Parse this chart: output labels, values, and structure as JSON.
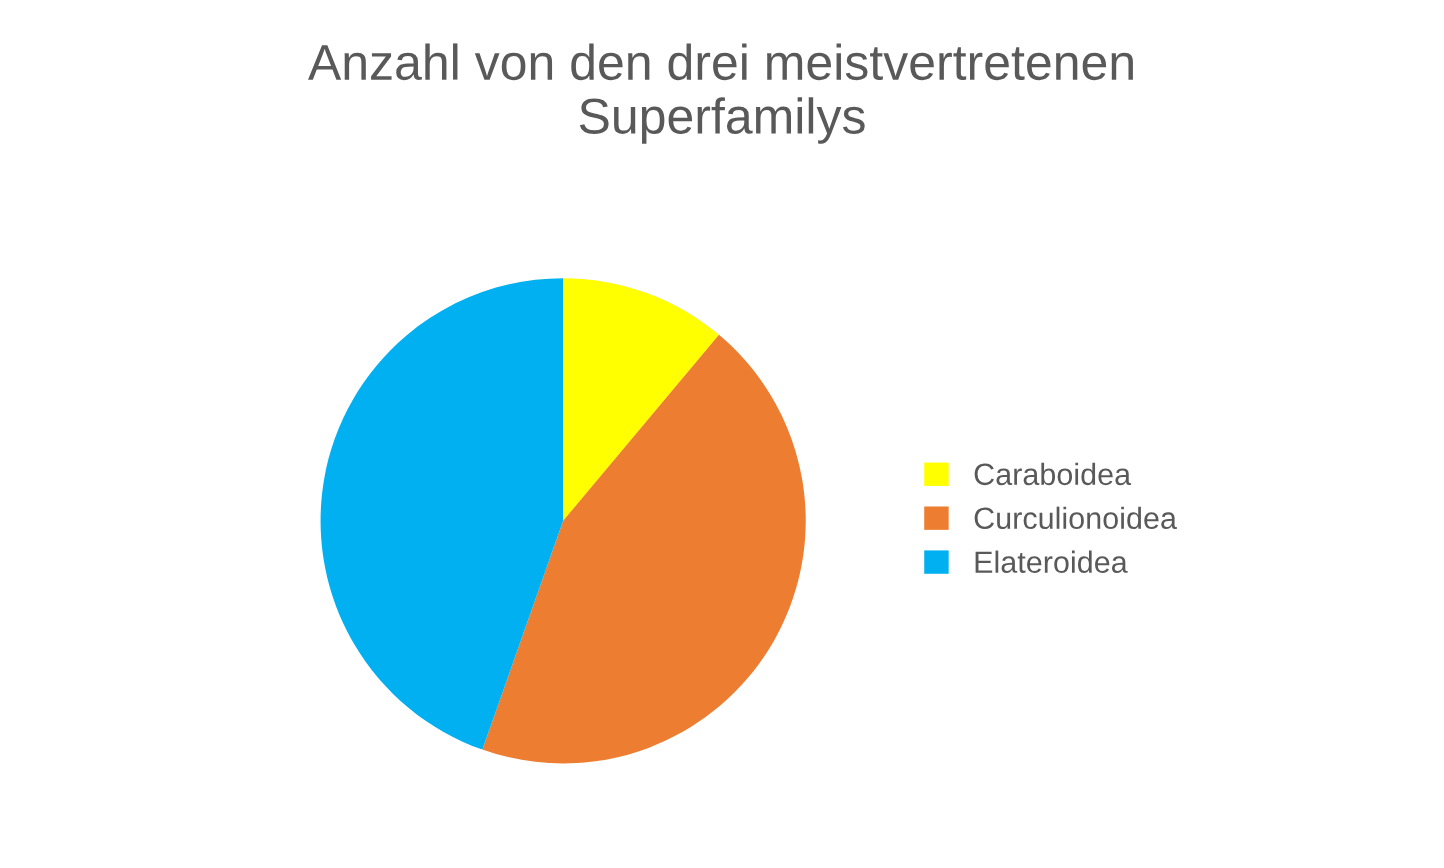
{
  "chart_data": {
    "type": "pie",
    "title": "Anzahl von den drei meistvertretenen\nSuperfamilys",
    "categories": [
      "Caraboidea",
      "Curculionoidea",
      "Elateroidea"
    ],
    "values": [
      11.1,
      44.3,
      44.6
    ],
    "colors": [
      "#ffff00",
      "#ed7d31",
      "#00b0f0"
    ],
    "legend": "right"
  }
}
